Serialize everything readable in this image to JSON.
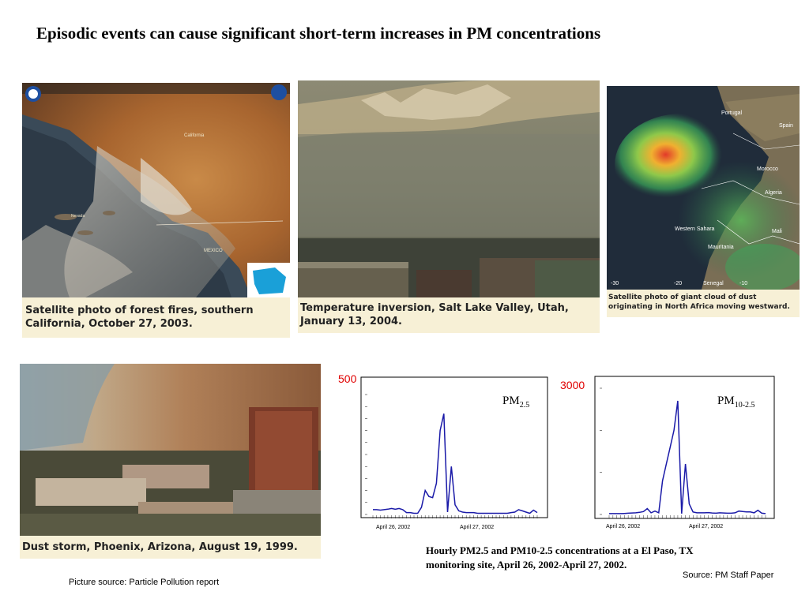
{
  "title": "Episodic events can cause significant short-term increases in PM concentrations",
  "photos": {
    "fires": {
      "caption": "Satellite photo of forest fires, southern California, October 27, 2003.",
      "map_labels": [
        "California",
        "MEXICO",
        "Nevada"
      ]
    },
    "inversion": {
      "caption": "Temperature inversion, Salt Lake Valley, Utah, January 13, 2004."
    },
    "dust_africa": {
      "caption": "Satellite photo of giant cloud of dust originating in North Africa moving westward.",
      "map_labels": [
        "Portugal",
        "Spain",
        "Morocco",
        "Algeria",
        "Western Sahara",
        "Mauritania",
        "Mali",
        "Senegal"
      ],
      "lon_ticks": [
        "-30",
        "-20",
        "-10"
      ]
    },
    "phoenix": {
      "caption": "Dust storm, Phoenix, Arizona, August 19, 1999."
    }
  },
  "chart_data": [
    {
      "type": "line",
      "series_label_main": "PM",
      "series_label_sub": "2.5",
      "ymax_label": "500",
      "ylim": [
        0,
        500
      ],
      "x_labels": [
        "April 26, 2002",
        "April 27, 2002"
      ],
      "color": "#1a1aa8",
      "values": [
        20,
        20,
        18,
        20,
        22,
        25,
        22,
        25,
        20,
        8,
        8,
        5,
        5,
        30,
        100,
        75,
        70,
        130,
        350,
        420,
        10,
        200,
        40,
        15,
        10,
        8,
        8,
        8,
        5,
        5,
        5,
        5,
        5,
        5,
        5,
        5,
        5,
        8,
        10,
        20,
        15,
        10,
        5,
        18,
        8
      ]
    },
    {
      "type": "line",
      "series_label_main": "PM",
      "series_label_sub": "10-2.5",
      "ymax_label": "3000",
      "ylim": [
        0,
        3000
      ],
      "x_labels": [
        "April 26, 2002",
        "April 27, 2002"
      ],
      "color": "#1a1aa8",
      "values": [
        20,
        20,
        20,
        20,
        25,
        30,
        35,
        40,
        50,
        70,
        140,
        40,
        80,
        40,
        800,
        1200,
        1600,
        2000,
        2700,
        20,
        1200,
        250,
        60,
        40,
        40,
        40,
        45,
        35,
        30,
        40,
        35,
        30,
        30,
        40,
        80,
        70,
        60,
        60,
        40,
        100,
        30,
        20
      ]
    }
  ],
  "chart_caption": "Hourly PM2.5 and PM10-2.5 concentrations at a El Paso, TX monitoring site, April 26, 2002-April 27, 2002.",
  "source_right": "Source: PM Staff Paper",
  "source_left": "Picture source: Particle Pollution report"
}
